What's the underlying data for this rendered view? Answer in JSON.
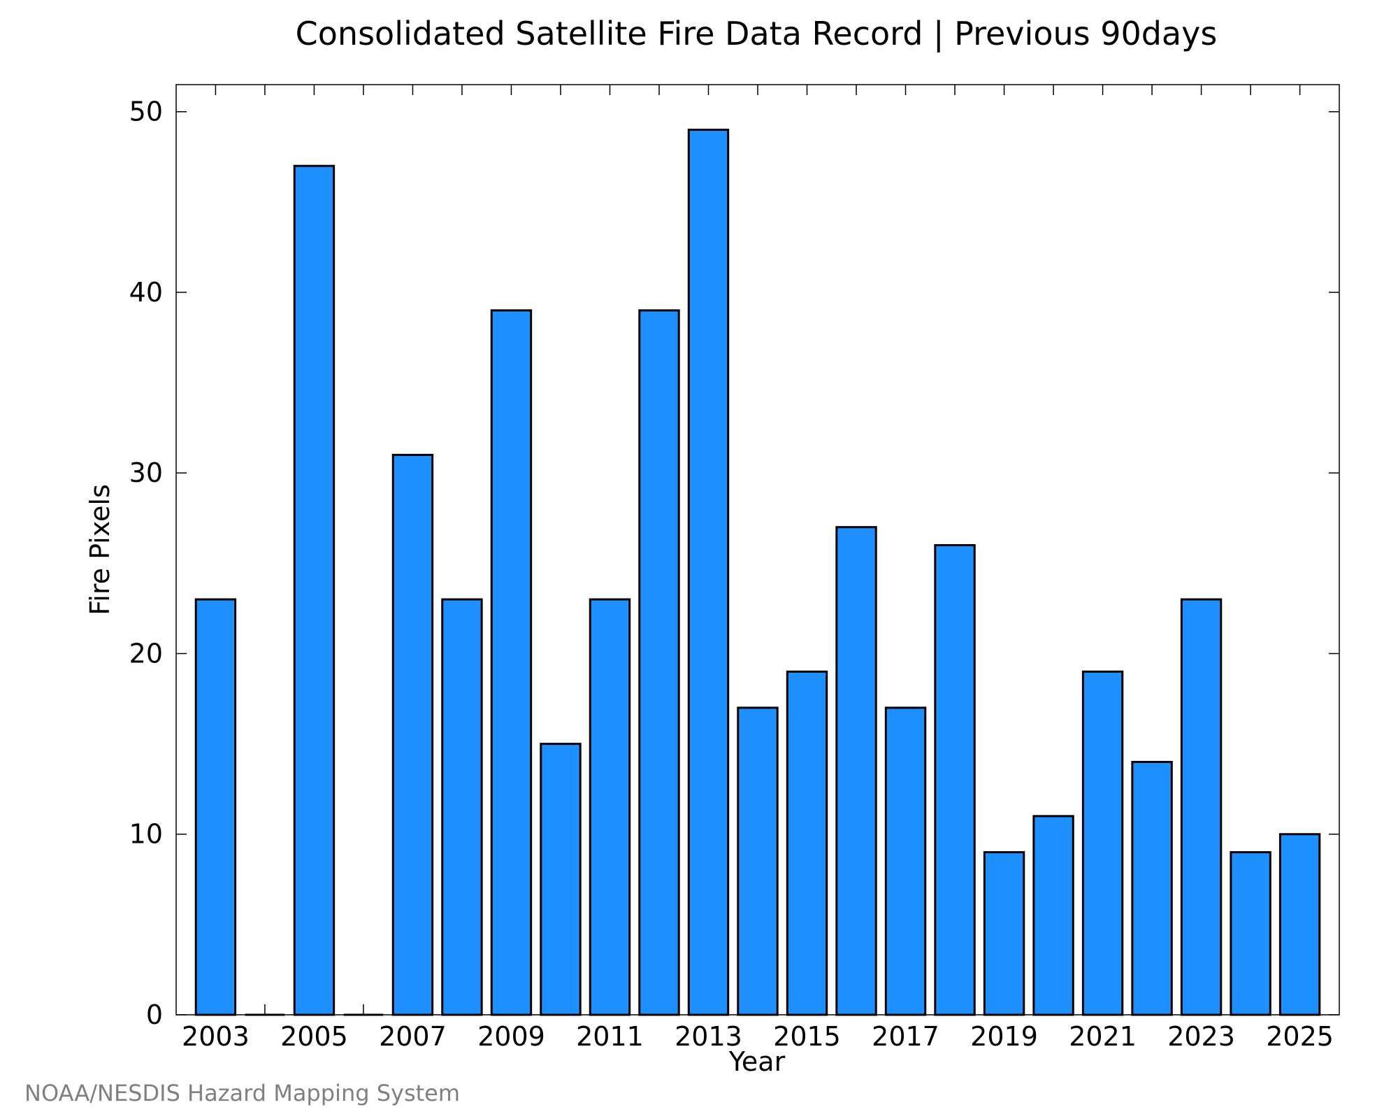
{
  "chart_data": {
    "type": "bar",
    "title": "Consolidated Satellite Fire Data Record | Previous 90days",
    "xlabel": "Year",
    "ylabel": "Fire Pixels",
    "categories": [
      "2003",
      "2004",
      "2005",
      "2006",
      "2007",
      "2008",
      "2009",
      "2010",
      "2011",
      "2012",
      "2013",
      "2014",
      "2015",
      "2016",
      "2017",
      "2018",
      "2019",
      "2020",
      "2021",
      "2022",
      "2023",
      "2024",
      "2025"
    ],
    "values": [
      23,
      0,
      47,
      0,
      31,
      23,
      39,
      15,
      23,
      39,
      49,
      17,
      19,
      27,
      17,
      26,
      9,
      11,
      19,
      14,
      23,
      9,
      10
    ],
    "x_tick_labels": [
      "2003",
      "2005",
      "2007",
      "2009",
      "2011",
      "2013",
      "2015",
      "2017",
      "2019",
      "2021",
      "2023",
      "2025"
    ],
    "y_ticks": [
      0,
      10,
      20,
      30,
      40,
      50
    ],
    "ylim": [
      0,
      51.5
    ],
    "xlim": [
      2002.2,
      2025.8
    ],
    "bar_color": "#1e90ff",
    "grid": false
  },
  "credit": "NOAA/NESDIS Hazard Mapping System"
}
